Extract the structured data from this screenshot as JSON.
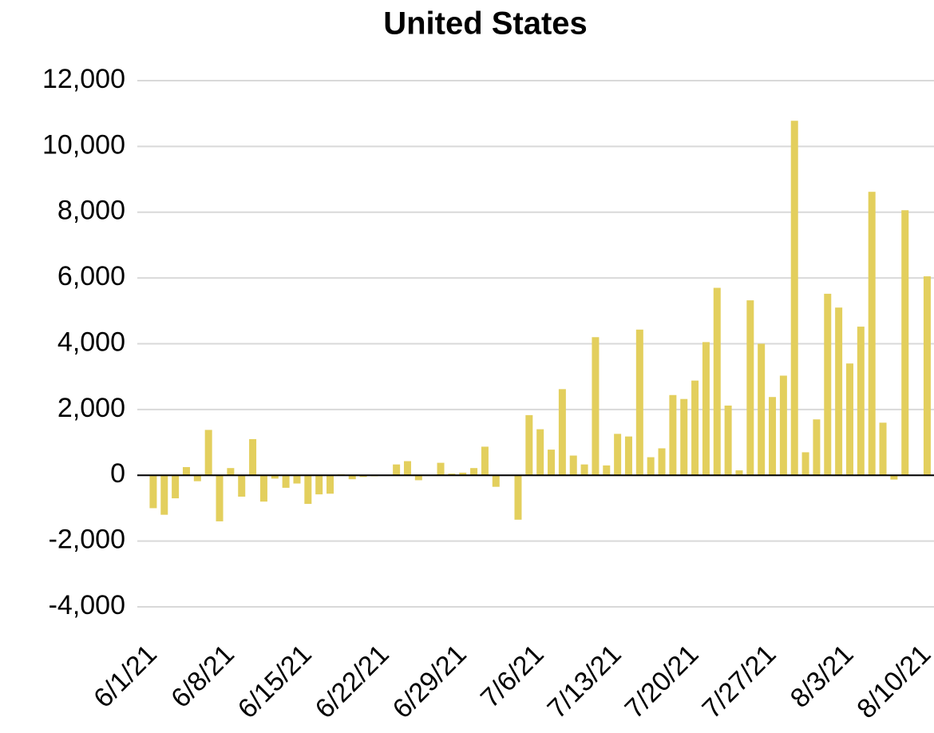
{
  "chart_data": {
    "type": "bar",
    "title": "United States",
    "categories": [
      "6/1/21",
      null,
      null,
      null,
      null,
      null,
      null,
      "6/8/21",
      null,
      null,
      null,
      null,
      null,
      null,
      "6/15/21",
      null,
      null,
      null,
      null,
      null,
      null,
      "6/22/21",
      null,
      null,
      null,
      null,
      null,
      null,
      "6/29/21",
      null,
      null,
      null,
      null,
      null,
      null,
      "7/6/21",
      null,
      null,
      null,
      null,
      null,
      null,
      "7/13/21",
      null,
      null,
      null,
      null,
      null,
      null,
      "7/20/21",
      null,
      null,
      null,
      null,
      null,
      null,
      "7/27/21",
      null,
      null,
      null,
      null,
      null,
      null,
      "8/3/21",
      null,
      null,
      null,
      null,
      null,
      null,
      "8/10/21"
    ],
    "values": [
      -1000,
      -1200,
      -700,
      250,
      -180,
      1380,
      -1400,
      220,
      -650,
      1100,
      -800,
      -100,
      -380,
      -250,
      -870,
      -580,
      -560,
      30,
      -120,
      -50,
      -30,
      0,
      330,
      430,
      -150,
      0,
      380,
      50,
      80,
      220,
      870,
      -350,
      0,
      -1350,
      1830,
      1400,
      780,
      2620,
      600,
      330,
      4200,
      300,
      1260,
      1180,
      4430,
      550,
      820,
      2440,
      2320,
      2880,
      4050,
      5700,
      2120,
      150,
      5320,
      4000,
      2380,
      3030,
      10780,
      700,
      1700,
      5520,
      5100,
      3400,
      4520,
      8620,
      1600,
      -130,
      8060,
      0,
      6050
    ],
    "color": "#e3cf5d",
    "ylim": [
      -4000,
      12000
    ],
    "yticks": [
      {
        "value": -4000,
        "label": "-4,000"
      },
      {
        "value": -2000,
        "label": "-2,000"
      },
      0,
      {
        "value": 2000,
        "label": "2,000"
      },
      {
        "value": 4000,
        "label": "4,000"
      },
      {
        "value": 6000,
        "label": "6,000"
      },
      {
        "value": 8000,
        "label": "8,000"
      },
      {
        "value": 10000,
        "label": "10,000"
      },
      {
        "value": 12000,
        "label": "12,000"
      }
    ],
    "grid": true
  }
}
